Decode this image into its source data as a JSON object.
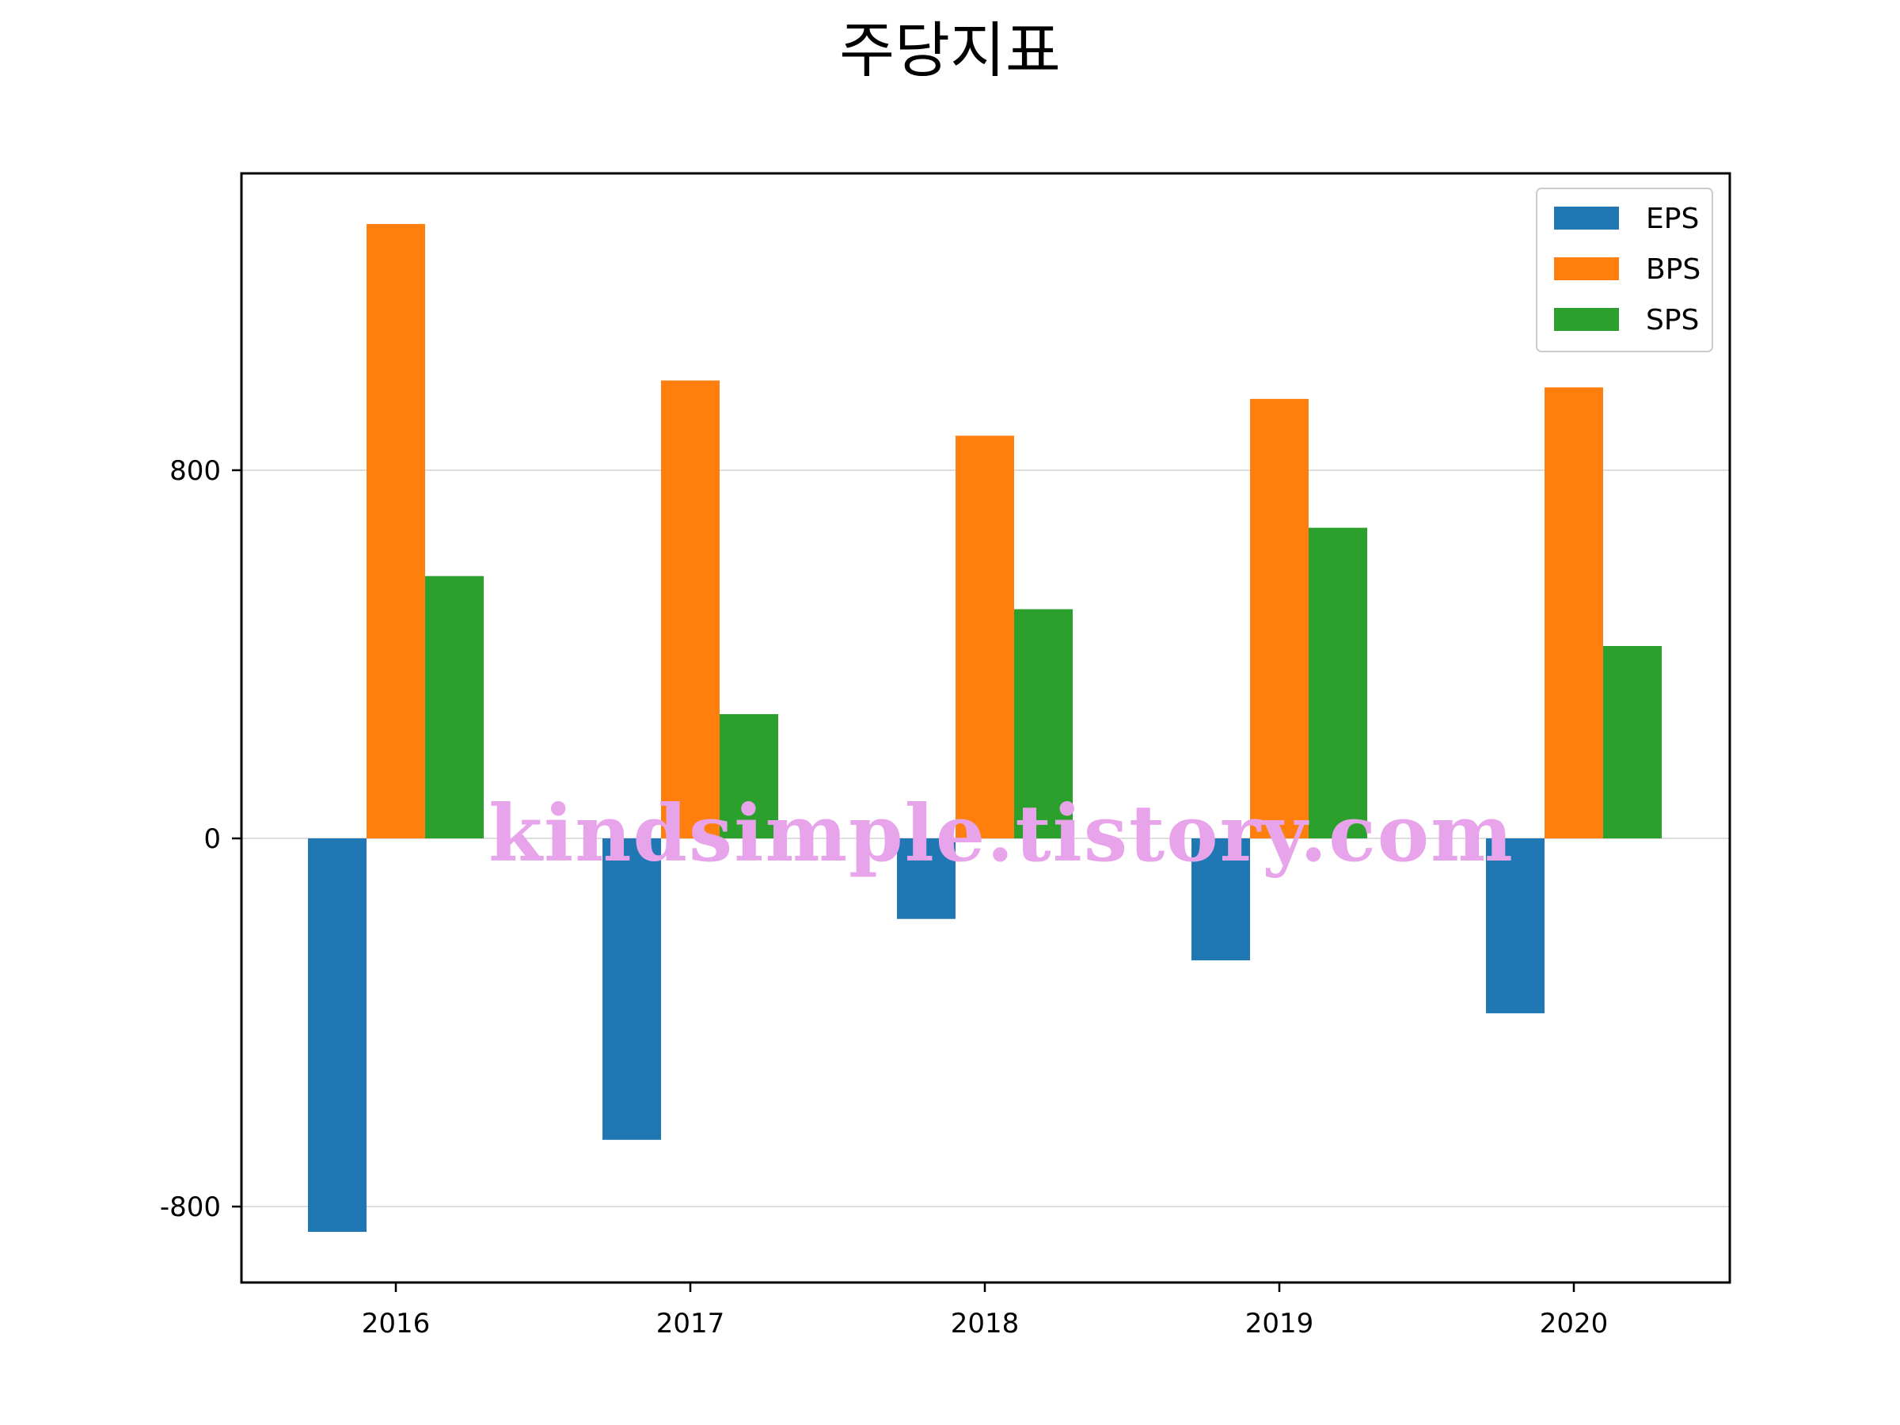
{
  "chart_data": {
    "type": "bar",
    "title": "주당지표",
    "xlabel": "",
    "ylabel": "",
    "categories": [
      "2016",
      "2017",
      "2018",
      "2019",
      "2020"
    ],
    "series": [
      {
        "name": "EPS",
        "color": "#1f77b4",
        "values": [
          -855,
          -655,
          -175,
          -265,
          -380
        ]
      },
      {
        "name": "BPS",
        "color": "#ff7f0e",
        "values": [
          1335,
          995,
          875,
          955,
          980
        ]
      },
      {
        "name": "SPS",
        "color": "#2ca02c",
        "values": [
          570,
          270,
          498,
          675,
          418
        ]
      }
    ],
    "ylim": [
      -965,
      1445
    ],
    "yticks": [
      -800,
      0,
      800
    ],
    "ytick_labels": [
      "-800",
      "0",
      "800"
    ],
    "grid": "horizontal",
    "legend_position": "top-right"
  },
  "watermark": "kindsimple.tistory.com"
}
